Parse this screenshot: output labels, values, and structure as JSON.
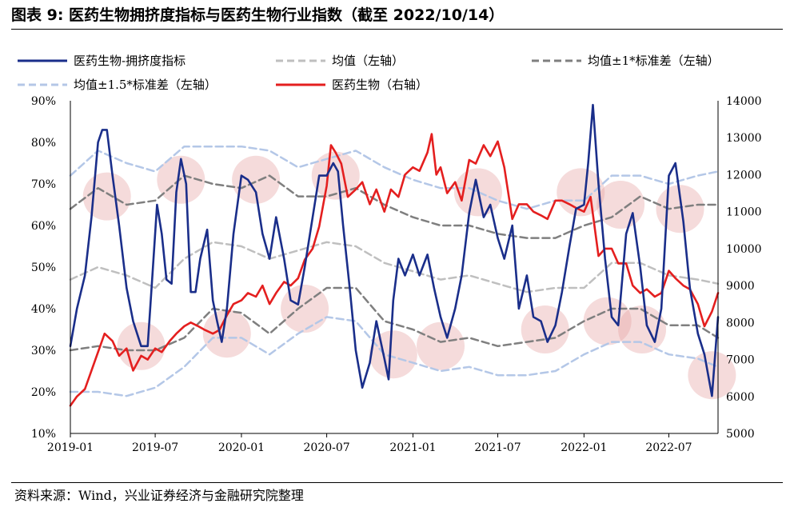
{
  "figure": {
    "title": "图表 9:  医药生物拥挤度指标与医药生物行业指数（截至 2022/10/14）",
    "source": "资料来源：Wind，兴业证券经济与金融研究院整理"
  },
  "chart_data": {
    "type": "line",
    "x_tick_labels": [
      "2019-01",
      "2019-07",
      "2020-01",
      "2020-07",
      "2021-01",
      "2021-07",
      "2022-01",
      "2022-07"
    ],
    "x_range": [
      "2019-01-01",
      "2022-10-14"
    ],
    "y_left": {
      "ticks": [
        "90%",
        "80%",
        "70%",
        "60%",
        "50%",
        "40%",
        "30%",
        "20%",
        "10%"
      ],
      "range": [
        10,
        90
      ],
      "unit": "%"
    },
    "y_right": {
      "ticks": [
        "14000",
        "13000",
        "12000",
        "11000",
        "10000",
        "9000",
        "8000",
        "7000",
        "6000",
        "5000"
      ],
      "range": [
        5000,
        14000
      ]
    },
    "grid": false,
    "legend_placement": "top",
    "series": [
      {
        "name": "医药生物-拥挤度指标",
        "axis": "left",
        "color": "#1a2e8a",
        "style": "solid",
        "x": [
          "2019-01-01",
          "2019-01-15",
          "2019-02-01",
          "2019-02-15",
          "2019-03-01",
          "2019-03-10",
          "2019-03-20",
          "2019-04-01",
          "2019-04-15",
          "2019-05-01",
          "2019-05-15",
          "2019-06-01",
          "2019-06-15",
          "2019-06-25",
          "2019-07-05",
          "2019-07-15",
          "2019-07-25",
          "2019-08-05",
          "2019-08-15",
          "2019-08-25",
          "2019-09-05",
          "2019-09-15",
          "2019-09-25",
          "2019-10-05",
          "2019-10-20",
          "2019-11-01",
          "2019-11-10",
          "2019-11-20",
          "2019-12-01",
          "2019-12-15",
          "2020-01-01",
          "2020-01-15",
          "2020-02-01",
          "2020-02-15",
          "2020-03-01",
          "2020-03-15",
          "2020-04-01",
          "2020-04-15",
          "2020-05-01",
          "2020-05-15",
          "2020-06-01",
          "2020-06-15",
          "2020-07-01",
          "2020-07-15",
          "2020-07-25",
          "2020-08-05",
          "2020-08-20",
          "2020-09-01",
          "2020-09-15",
          "2020-10-01",
          "2020-10-15",
          "2020-11-01",
          "2020-11-10",
          "2020-11-20",
          "2020-12-01",
          "2020-12-15",
          "2021-01-01",
          "2021-01-15",
          "2021-02-01",
          "2021-02-15",
          "2021-03-01",
          "2021-03-15",
          "2021-04-01",
          "2021-04-15",
          "2021-05-01",
          "2021-05-15",
          "2021-06-01",
          "2021-06-15",
          "2021-07-01",
          "2021-07-15",
          "2021-08-01",
          "2021-08-15",
          "2021-09-01",
          "2021-09-15",
          "2021-10-01",
          "2021-10-15",
          "2021-11-01",
          "2021-11-15",
          "2021-12-01",
          "2021-12-15",
          "2022-01-01",
          "2022-01-10",
          "2022-01-20",
          "2022-02-01",
          "2022-02-15",
          "2022-03-01",
          "2022-03-15",
          "2022-04-01",
          "2022-04-15",
          "2022-05-01",
          "2022-05-15",
          "2022-06-01",
          "2022-06-15",
          "2022-07-01",
          "2022-07-15",
          "2022-08-01",
          "2022-08-15",
          "2022-09-01",
          "2022-09-15",
          "2022-10-01",
          "2022-10-14"
        ],
        "values": [
          31,
          40,
          48,
          62,
          80,
          83,
          83,
          72,
          60,
          45,
          37,
          31,
          31,
          48,
          65,
          58,
          47,
          46,
          68,
          76,
          70,
          44,
          44,
          52,
          59,
          42,
          37,
          32,
          40,
          58,
          72,
          71,
          68,
          58,
          52,
          62,
          52,
          42,
          41,
          50,
          62,
          72,
          72,
          75,
          73,
          60,
          44,
          30,
          21,
          27,
          37,
          28,
          23,
          42,
          52,
          48,
          53,
          48,
          53,
          45,
          38,
          33,
          40,
          48,
          63,
          71,
          62,
          65,
          57,
          52,
          60,
          40,
          48,
          38,
          37,
          32,
          36,
          44,
          55,
          64,
          65,
          75,
          89,
          70,
          52,
          38,
          36,
          58,
          63,
          50,
          36,
          32,
          40,
          72,
          75,
          61,
          45,
          34,
          29,
          19,
          38
        ]
      },
      {
        "name": "均值（左轴）",
        "axis": "left",
        "color": "#bfbfbf",
        "style": "dashed",
        "x": [
          "2019-01-01",
          "2019-03-01",
          "2019-05-01",
          "2019-07-01",
          "2019-09-01",
          "2019-11-01",
          "2020-01-01",
          "2020-03-01",
          "2020-05-01",
          "2020-07-01",
          "2020-09-01",
          "2020-11-01",
          "2021-01-01",
          "2021-03-01",
          "2021-05-01",
          "2021-07-01",
          "2021-09-01",
          "2021-11-01",
          "2022-01-01",
          "2022-03-01",
          "2022-05-01",
          "2022-07-01",
          "2022-09-01",
          "2022-10-14"
        ],
        "values": [
          47,
          50,
          48,
          45,
          52,
          56,
          55,
          52,
          54,
          56,
          55,
          51,
          49,
          47,
          48,
          46,
          44,
          45,
          45,
          51,
          51,
          48,
          47,
          46
        ]
      },
      {
        "name": "均值±1*标准差（左轴）",
        "axis": "left",
        "color": "#7f7f7f",
        "style": "dashed",
        "upper": [
          64,
          69,
          65,
          66,
          72,
          70,
          69,
          72,
          67,
          67,
          69,
          65,
          62,
          60,
          60,
          58,
          57,
          57,
          60,
          62,
          67,
          64,
          65,
          65
        ],
        "lower": [
          30,
          31,
          30,
          30,
          33,
          40,
          39,
          34,
          40,
          45,
          45,
          37,
          35,
          32,
          33,
          31,
          32,
          33,
          37,
          40,
          40,
          36,
          36,
          33
        ]
      },
      {
        "name": "均值±1.5*标准差（左轴）",
        "axis": "left",
        "color": "#b4c7e7",
        "style": "dashed",
        "upper": [
          72,
          78,
          75,
          73,
          79,
          79,
          79,
          78,
          74,
          76,
          78,
          74,
          71,
          69,
          69,
          66,
          64,
          66,
          66,
          72,
          72,
          70,
          72,
          73
        ],
        "lower": [
          20,
          20,
          19,
          21,
          26,
          33,
          33,
          29,
          34,
          38,
          37,
          29,
          27,
          25,
          26,
          24,
          24,
          25,
          29,
          32,
          32,
          29,
          28,
          26
        ]
      },
      {
        "name": "医药生物（右轴）",
        "axis": "right",
        "color": "#e41f1f",
        "style": "solid",
        "x": [
          "2019-01-01",
          "2019-01-15",
          "2019-02-01",
          "2019-02-15",
          "2019-03-01",
          "2019-03-15",
          "2019-04-01",
          "2019-04-15",
          "2019-05-01",
          "2019-05-15",
          "2019-06-01",
          "2019-06-15",
          "2019-07-01",
          "2019-07-15",
          "2019-08-01",
          "2019-08-15",
          "2019-09-01",
          "2019-09-15",
          "2019-10-01",
          "2019-10-15",
          "2019-11-01",
          "2019-11-15",
          "2019-12-01",
          "2019-12-15",
          "2020-01-01",
          "2020-01-15",
          "2020-02-01",
          "2020-02-15",
          "2020-03-01",
          "2020-03-15",
          "2020-04-01",
          "2020-04-15",
          "2020-05-01",
          "2020-05-15",
          "2020-06-01",
          "2020-06-15",
          "2020-07-01",
          "2020-07-10",
          "2020-07-20",
          "2020-08-01",
          "2020-08-15",
          "2020-09-01",
          "2020-09-15",
          "2020-10-01",
          "2020-10-15",
          "2020-11-01",
          "2020-11-15",
          "2020-12-01",
          "2020-12-15",
          "2021-01-01",
          "2021-01-15",
          "2021-02-01",
          "2021-02-10",
          "2021-02-20",
          "2021-03-01",
          "2021-03-15",
          "2021-04-01",
          "2021-04-15",
          "2021-05-01",
          "2021-05-15",
          "2021-06-01",
          "2021-06-15",
          "2021-07-01",
          "2021-07-15",
          "2021-08-01",
          "2021-08-15",
          "2021-09-01",
          "2021-09-15",
          "2021-10-01",
          "2021-10-15",
          "2021-11-01",
          "2021-11-15",
          "2021-12-01",
          "2021-12-15",
          "2022-01-01",
          "2022-01-15",
          "2022-02-01",
          "2022-02-15",
          "2022-03-01",
          "2022-03-15",
          "2022-04-01",
          "2022-04-15",
          "2022-05-01",
          "2022-05-15",
          "2022-06-01",
          "2022-06-15",
          "2022-07-01",
          "2022-07-15",
          "2022-08-01",
          "2022-08-15",
          "2022-09-01",
          "2022-09-15",
          "2022-10-01",
          "2022-10-14"
        ],
        "values": [
          5750,
          6000,
          6200,
          6700,
          7200,
          7700,
          7500,
          7100,
          7300,
          6700,
          7100,
          7000,
          7300,
          7200,
          7500,
          7700,
          7900,
          8000,
          7900,
          7800,
          7700,
          7800,
          8200,
          8500,
          8600,
          8800,
          8700,
          9000,
          8500,
          8800,
          9100,
          9000,
          9200,
          9700,
          10000,
          10600,
          11700,
          12800,
          12600,
          12300,
          11400,
          11600,
          11800,
          11200,
          11600,
          11000,
          11600,
          11400,
          12000,
          12200,
          12100,
          12600,
          13100,
          12000,
          12200,
          11500,
          11800,
          11300,
          12400,
          12300,
          12800,
          12500,
          12900,
          12200,
          10800,
          11200,
          11200,
          11000,
          10900,
          10800,
          11300,
          11300,
          11200,
          11100,
          11000,
          11400,
          9800,
          10000,
          10000,
          9600,
          9600,
          9000,
          8800,
          8900,
          8700,
          8800,
          9400,
          9200,
          9000,
          8900,
          8500,
          7900,
          8300,
          8800
        ]
      }
    ],
    "highlights": "pink circles marking extreme crowding levels"
  }
}
